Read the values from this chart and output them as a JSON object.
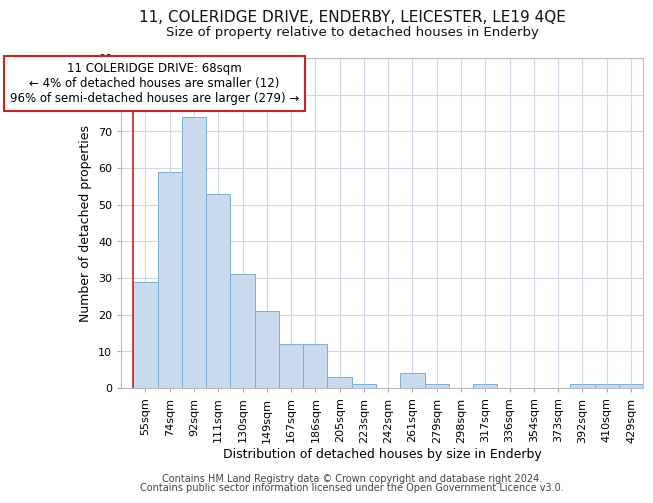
{
  "title_line1": "11, COLERIDGE DRIVE, ENDERBY, LEICESTER, LE19 4QE",
  "title_line2": "Size of property relative to detached houses in Enderby",
  "xlabel": "Distribution of detached houses by size in Enderby",
  "ylabel": "Number of detached properties",
  "categories": [
    "55sqm",
    "74sqm",
    "92sqm",
    "111sqm",
    "130sqm",
    "149sqm",
    "167sqm",
    "186sqm",
    "205sqm",
    "223sqm",
    "242sqm",
    "261sqm",
    "279sqm",
    "298sqm",
    "317sqm",
    "336sqm",
    "354sqm",
    "373sqm",
    "392sqm",
    "410sqm",
    "429sqm"
  ],
  "values": [
    29,
    59,
    74,
    53,
    31,
    21,
    12,
    12,
    3,
    1,
    0,
    4,
    1,
    0,
    1,
    0,
    0,
    0,
    1,
    1,
    1
  ],
  "bar_color": "#c9d9ee",
  "bar_edge_color": "#7aafd4",
  "vline_color": "#cc2222",
  "vline_x_index": 0,
  "ylim_max": 90,
  "yticks": [
    0,
    10,
    20,
    30,
    40,
    50,
    60,
    70,
    80,
    90
  ],
  "annotation_line1": "11 COLERIDGE DRIVE: 68sqm",
  "annotation_line2": "← 4% of detached houses are smaller (12)",
  "annotation_line3": "96% of semi-detached houses are larger (279) →",
  "footer_line1": "Contains HM Land Registry data © Crown copyright and database right 2024.",
  "footer_line2": "Contains public sector information licensed under the Open Government Licence v3.0.",
  "bg_color": "#ffffff",
  "plot_bg_color": "#ffffff",
  "grid_color": "#d0d8e8",
  "title_fontsize": 11,
  "subtitle_fontsize": 9.5,
  "axis_label_fontsize": 9,
  "tick_fontsize": 8,
  "annotation_fontsize": 8.5,
  "footer_fontsize": 7
}
